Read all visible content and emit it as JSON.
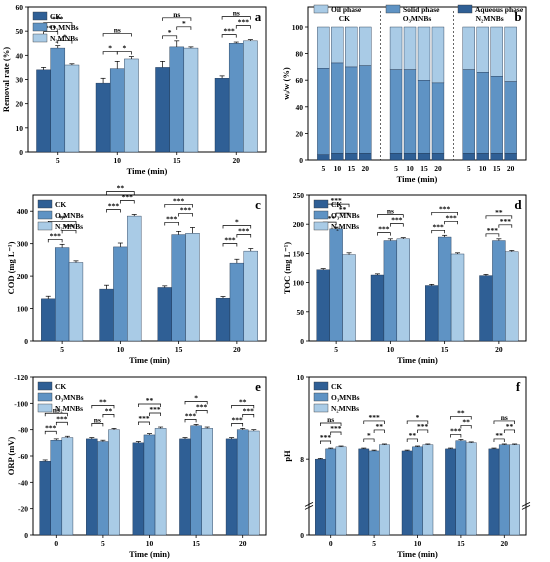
{
  "colors": {
    "ck": "#2f5f95",
    "o3": "#5f93c4",
    "n2": "#a9cbe6",
    "axis": "#000000"
  },
  "chart_data": [
    {
      "id": "a",
      "panel_label": "a",
      "type": "bar",
      "categories": [
        "5",
        "10",
        "15",
        "20"
      ],
      "xlabel": "Time (min)",
      "ylabel": "Removal rate (%)",
      "ylim": [
        0,
        60
      ],
      "yticks": [
        "0",
        "10",
        "20",
        "30",
        "40",
        "50",
        "60"
      ],
      "legend_position": "top-left",
      "series": [
        {
          "name": "CK",
          "values": [
            34,
            28.5,
            35,
            30.5
          ],
          "errors": [
            1,
            2,
            2.5,
            1
          ]
        },
        {
          "name": "O₃MNBs",
          "values": [
            43,
            34.5,
            43.5,
            45
          ],
          "errors": [
            1,
            3,
            2.5,
            0.5
          ]
        },
        {
          "name": "N₂MNBs",
          "values": [
            36,
            38.5,
            43,
            46
          ],
          "errors": [
            0.5,
            1,
            0.5,
            0.5
          ]
        }
      ],
      "sig": [
        {
          "cat": 0,
          "pair": [
            0,
            1
          ],
          "label": "***",
          "level": 2
        },
        {
          "cat": 0,
          "pair": [
            1,
            2
          ],
          "label": "*",
          "level": 1
        },
        {
          "cat": 0,
          "pair": [
            0,
            2
          ],
          "label": "***",
          "level": 3
        },
        {
          "cat": 1,
          "pair": [
            0,
            1
          ],
          "label": "*",
          "level": 1
        },
        {
          "cat": 1,
          "pair": [
            1,
            2
          ],
          "label": "*",
          "level": 1
        },
        {
          "cat": 1,
          "pair": [
            0,
            2
          ],
          "label": "ns",
          "level": 3
        },
        {
          "cat": 2,
          "pair": [
            0,
            1
          ],
          "label": "*",
          "level": 1
        },
        {
          "cat": 2,
          "pair": [
            1,
            2
          ],
          "label": "*",
          "level": 2
        },
        {
          "cat": 2,
          "pair": [
            0,
            2
          ],
          "label": "ns",
          "level": 3
        },
        {
          "cat": 3,
          "pair": [
            0,
            1
          ],
          "label": "***",
          "level": 1
        },
        {
          "cat": 3,
          "pair": [
            1,
            2
          ],
          "label": "***",
          "level": 2
        },
        {
          "cat": 3,
          "pair": [
            0,
            2
          ],
          "label": "ns",
          "level": 3
        }
      ]
    },
    {
      "id": "b",
      "panel_label": "b",
      "type": "bar",
      "stacked": true,
      "percent": true,
      "group_labels": [
        "CK",
        "O₃MNBs",
        "N₂MNBs"
      ],
      "categories": [
        "5",
        "10",
        "15",
        "20"
      ],
      "xlabel": "Time (min)",
      "ylabel": "wᵢ/w (%)",
      "ylim": [
        0,
        100
      ],
      "yticks": [
        "0",
        "20",
        "40",
        "60",
        "80",
        "100"
      ],
      "legend_position": "top",
      "series": [
        {
          "name": "Aqueous phase",
          "values": [
            [
              4,
              5,
              5,
              5
            ],
            [
              5,
              5,
              5,
              5
            ],
            [
              5,
              5,
              5,
              5
            ]
          ]
        },
        {
          "name": "Solid phase",
          "values": [
            [
              65,
              68,
              65,
              66
            ],
            [
              63,
              63,
              55,
              53
            ],
            [
              63,
              61,
              58,
              54
            ]
          ]
        },
        {
          "name": "Oil phase",
          "values": [
            [
              31,
              27,
              30,
              29
            ],
            [
              32,
              32,
              40,
              42
            ],
            [
              32,
              34,
              37,
              41
            ]
          ]
        }
      ]
    },
    {
      "id": "c",
      "panel_label": "c",
      "type": "bar",
      "categories": [
        "5",
        "10",
        "15",
        "20"
      ],
      "xlabel": "Time (min)",
      "ylabel": "COD (mg L⁻¹)",
      "ylim": [
        0,
        450
      ],
      "yticks": [
        "0",
        "100",
        "200",
        "300",
        "400"
      ],
      "legend_position": "top-left",
      "series": [
        {
          "name": "CK",
          "values": [
            130,
            160,
            165,
            132
          ],
          "errors": [
            8,
            12,
            5,
            5
          ]
        },
        {
          "name": "O₃MNBs",
          "values": [
            288,
            290,
            328,
            240
          ],
          "errors": [
            10,
            12,
            10,
            12
          ]
        },
        {
          "name": "N₂MNBs",
          "values": [
            242,
            385,
            332,
            277
          ],
          "errors": [
            5,
            5,
            18,
            8
          ]
        }
      ],
      "sig": [
        {
          "cat": 0,
          "pair": [
            0,
            1
          ],
          "label": "***",
          "level": 1
        },
        {
          "cat": 0,
          "pair": [
            1,
            2
          ],
          "label": "***",
          "level": 2
        },
        {
          "cat": 0,
          "pair": [
            0,
            2
          ],
          "label": "**",
          "level": 3
        },
        {
          "cat": 1,
          "pair": [
            0,
            1
          ],
          "label": "***",
          "level": 1
        },
        {
          "cat": 1,
          "pair": [
            1,
            2
          ],
          "label": "***",
          "level": 2
        },
        {
          "cat": 1,
          "pair": [
            0,
            2
          ],
          "label": "**",
          "level": 3
        },
        {
          "cat": 2,
          "pair": [
            0,
            1
          ],
          "label": "***",
          "level": 1
        },
        {
          "cat": 2,
          "pair": [
            1,
            2
          ],
          "label": "***",
          "level": 2
        },
        {
          "cat": 2,
          "pair": [
            0,
            2
          ],
          "label": "***",
          "level": 3
        },
        {
          "cat": 3,
          "pair": [
            0,
            1
          ],
          "label": "***",
          "level": 1
        },
        {
          "cat": 3,
          "pair": [
            1,
            2
          ],
          "label": "***",
          "level": 2
        },
        {
          "cat": 3,
          "pair": [
            0,
            2
          ],
          "label": "*",
          "level": 3
        }
      ]
    },
    {
      "id": "d",
      "panel_label": "d",
      "type": "bar",
      "categories": [
        "5",
        "10",
        "15",
        "20"
      ],
      "xlabel": "Time (min)",
      "ylabel": "TOC (mg L⁻¹)",
      "ylim": [
        0,
        250
      ],
      "yticks": [
        "0",
        "50",
        "100",
        "150",
        "200",
        "250"
      ],
      "legend_position": "top-left",
      "series": [
        {
          "name": "CK",
          "values": [
            122,
            113,
            95,
            112
          ],
          "errors": [
            2,
            2,
            2,
            2
          ]
        },
        {
          "name": "O₃MNBs",
          "values": [
            192,
            172,
            178,
            172
          ],
          "errors": [
            3,
            3,
            3,
            3
          ]
        },
        {
          "name": "N₂MNBs",
          "values": [
            148,
            175,
            149,
            153
          ],
          "errors": [
            3,
            2,
            2,
            2
          ]
        }
      ],
      "sig": [
        {
          "cat": 0,
          "pair": [
            0,
            1
          ],
          "label": "***",
          "level": 1
        },
        {
          "cat": 0,
          "pair": [
            1,
            2
          ],
          "label": "**",
          "level": 2
        },
        {
          "cat": 0,
          "pair": [
            0,
            2
          ],
          "label": "***",
          "level": 3
        },
        {
          "cat": 1,
          "pair": [
            0,
            1
          ],
          "label": "***",
          "level": 1
        },
        {
          "cat": 1,
          "pair": [
            1,
            2
          ],
          "label": "***",
          "level": 2
        },
        {
          "cat": 1,
          "pair": [
            0,
            2
          ],
          "label": "ns",
          "level": 3
        },
        {
          "cat": 2,
          "pair": [
            0,
            1
          ],
          "label": "***",
          "level": 1
        },
        {
          "cat": 2,
          "pair": [
            1,
            2
          ],
          "label": "***",
          "level": 2
        },
        {
          "cat": 2,
          "pair": [
            0,
            2
          ],
          "label": "***",
          "level": 3
        },
        {
          "cat": 3,
          "pair": [
            0,
            1
          ],
          "label": "***",
          "level": 1
        },
        {
          "cat": 3,
          "pair": [
            1,
            2
          ],
          "label": "***",
          "level": 2
        },
        {
          "cat": 3,
          "pair": [
            0,
            2
          ],
          "label": "**",
          "level": 3
        }
      ]
    },
    {
      "id": "e",
      "panel_label": "e",
      "type": "bar",
      "categories": [
        "0",
        "5",
        "10",
        "15",
        "20"
      ],
      "xlabel": "Time (min)",
      "ylabel": "ORP (mV)",
      "ylim": [
        -120,
        0
      ],
      "yticks": [
        "0",
        "-20",
        "-40",
        "-60",
        "-80",
        "-100",
        "-120"
      ],
      "inverted_axis": true,
      "legend_position": "top-left",
      "series": [
        {
          "name": "CK",
          "values": [
            -56,
            -73,
            -70,
            -73,
            -73
          ],
          "errors": [
            1,
            1,
            1,
            1,
            1
          ]
        },
        {
          "name": "O₃MNBs",
          "values": [
            -72,
            -71,
            -76,
            -83,
            -80
          ],
          "errors": [
            1,
            1,
            1,
            1,
            1
          ]
        },
        {
          "name": "N₂MNBs",
          "values": [
            -74,
            -80,
            -81,
            -81,
            -79
          ],
          "errors": [
            1,
            1,
            1,
            1,
            1
          ]
        }
      ],
      "sig": [
        {
          "cat": 0,
          "pair": [
            0,
            1
          ],
          "label": "***",
          "level": 1
        },
        {
          "cat": 0,
          "pair": [
            1,
            2
          ],
          "label": "***",
          "level": 2
        },
        {
          "cat": 0,
          "pair": [
            0,
            2
          ],
          "label": "ns",
          "level": 3
        },
        {
          "cat": 1,
          "pair": [
            0,
            1
          ],
          "label": "ns",
          "level": 1
        },
        {
          "cat": 1,
          "pair": [
            1,
            2
          ],
          "label": "**",
          "level": 2
        },
        {
          "cat": 1,
          "pair": [
            0,
            2
          ],
          "label": "**",
          "level": 3
        },
        {
          "cat": 2,
          "pair": [
            0,
            1
          ],
          "label": "***",
          "level": 1
        },
        {
          "cat": 2,
          "pair": [
            1,
            2
          ],
          "label": "***",
          "level": 2
        },
        {
          "cat": 2,
          "pair": [
            0,
            2
          ],
          "label": "**",
          "level": 3
        },
        {
          "cat": 3,
          "pair": [
            0,
            1
          ],
          "label": "***",
          "level": 1
        },
        {
          "cat": 3,
          "pair": [
            1,
            2
          ],
          "label": "***",
          "level": 2
        },
        {
          "cat": 3,
          "pair": [
            0,
            2
          ],
          "label": "*",
          "level": 3
        },
        {
          "cat": 4,
          "pair": [
            0,
            1
          ],
          "label": "***",
          "level": 1
        },
        {
          "cat": 4,
          "pair": [
            1,
            2
          ],
          "label": "***",
          "level": 2
        },
        {
          "cat": 4,
          "pair": [
            0,
            2
          ],
          "label": "**",
          "level": 3
        }
      ]
    },
    {
      "id": "f",
      "panel_label": "f",
      "type": "bar",
      "categories": [
        "0",
        "5",
        "10",
        "15",
        "20"
      ],
      "xlabel": "Time (min)",
      "ylabel": "pH",
      "ylim": [
        0,
        10
      ],
      "yticks": [
        "0",
        "8",
        "10"
      ],
      "axis_break": [
        1,
        7
      ],
      "legend_position": "top-left",
      "series": [
        {
          "name": "CK",
          "values": [
            8.0,
            8.25,
            8.2,
            8.25,
            8.25
          ],
          "errors": [
            0.02,
            0.02,
            0.02,
            0.02,
            0.02
          ]
        },
        {
          "name": "O₃MNBs",
          "values": [
            8.25,
            8.2,
            8.3,
            8.45,
            8.35
          ],
          "errors": [
            0.02,
            0.02,
            0.02,
            0.03,
            0.02
          ]
        },
        {
          "name": "N₂MNBs",
          "values": [
            8.3,
            8.35,
            8.35,
            8.4,
            8.35
          ],
          "errors": [
            0.02,
            0.02,
            0.02,
            0.02,
            0.02
          ]
        }
      ],
      "sig": [
        {
          "cat": 0,
          "pair": [
            0,
            1
          ],
          "label": "***",
          "level": 1
        },
        {
          "cat": 0,
          "pair": [
            1,
            2
          ],
          "label": "***",
          "level": 2
        },
        {
          "cat": 0,
          "pair": [
            0,
            2
          ],
          "label": "ns",
          "level": 3
        },
        {
          "cat": 1,
          "pair": [
            0,
            1
          ],
          "label": "*",
          "level": 1
        },
        {
          "cat": 1,
          "pair": [
            1,
            2
          ],
          "label": "**",
          "level": 2
        },
        {
          "cat": 1,
          "pair": [
            0,
            2
          ],
          "label": "***",
          "level": 3
        },
        {
          "cat": 2,
          "pair": [
            0,
            1
          ],
          "label": "**",
          "level": 1
        },
        {
          "cat": 2,
          "pair": [
            1,
            2
          ],
          "label": "***",
          "level": 2
        },
        {
          "cat": 2,
          "pair": [
            0,
            2
          ],
          "label": "*",
          "level": 3
        },
        {
          "cat": 3,
          "pair": [
            0,
            1
          ],
          "label": "***",
          "level": 1
        },
        {
          "cat": 3,
          "pair": [
            1,
            2
          ],
          "label": "**",
          "level": 2
        },
        {
          "cat": 3,
          "pair": [
            0,
            2
          ],
          "label": "**",
          "level": 3
        },
        {
          "cat": 4,
          "pair": [
            0,
            1
          ],
          "label": "**",
          "level": 1
        },
        {
          "cat": 4,
          "pair": [
            1,
            2
          ],
          "label": "**",
          "level": 2
        },
        {
          "cat": 4,
          "pair": [
            0,
            2
          ],
          "label": "ns",
          "level": 3
        }
      ]
    }
  ]
}
